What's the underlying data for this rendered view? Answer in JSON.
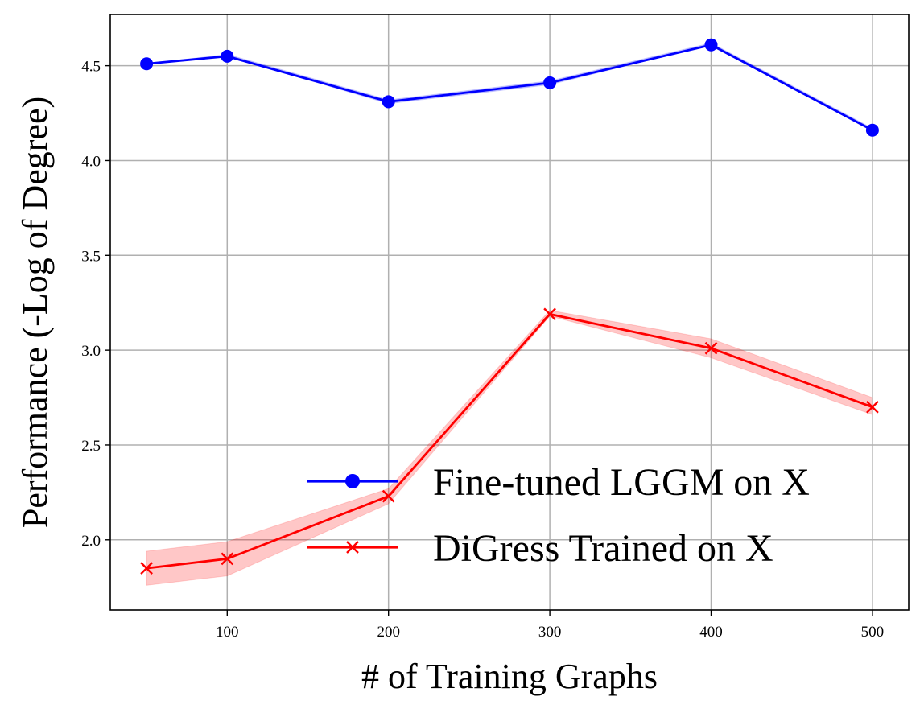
{
  "chart_data": {
    "type": "line",
    "title": "",
    "xlabel": "# of Training Graphs",
    "ylabel": "Performance (-Log of Degree)",
    "x": [
      50,
      100,
      200,
      300,
      400,
      500
    ],
    "xticks": [
      100,
      200,
      300,
      400,
      500
    ],
    "xtick_labels": [
      "100",
      "200",
      "300",
      "400",
      "500"
    ],
    "yticks": [
      2.0,
      2.5,
      3.0,
      3.5,
      4.0,
      4.5
    ],
    "ytick_labels": [
      "2.0",
      "2.5",
      "3.0",
      "3.5",
      "4.0",
      "4.5"
    ],
    "xlim": [
      27.5,
      522.5
    ],
    "ylim": [
      1.63,
      4.77
    ],
    "grid": true,
    "legend_position": "lower-right",
    "series": [
      {
        "name": "Fine-tuned LGGM on X",
        "color": "#0000ff",
        "marker": "circle",
        "values": [
          4.51,
          4.55,
          4.31,
          4.41,
          4.61,
          4.16
        ],
        "lower": [
          4.51,
          4.55,
          4.3,
          4.4,
          4.61,
          4.16
        ],
        "upper": [
          4.51,
          4.56,
          4.32,
          4.42,
          4.62,
          4.17
        ]
      },
      {
        "name": "DiGress Trained on X",
        "color": "#ff0000",
        "band_color": "#ff0000",
        "marker": "x",
        "values": [
          1.85,
          1.9,
          2.23,
          3.19,
          3.01,
          2.7
        ],
        "lower": [
          1.76,
          1.81,
          2.19,
          3.18,
          2.96,
          2.66
        ],
        "upper": [
          1.94,
          1.99,
          2.27,
          3.21,
          3.06,
          2.75
        ]
      }
    ]
  }
}
